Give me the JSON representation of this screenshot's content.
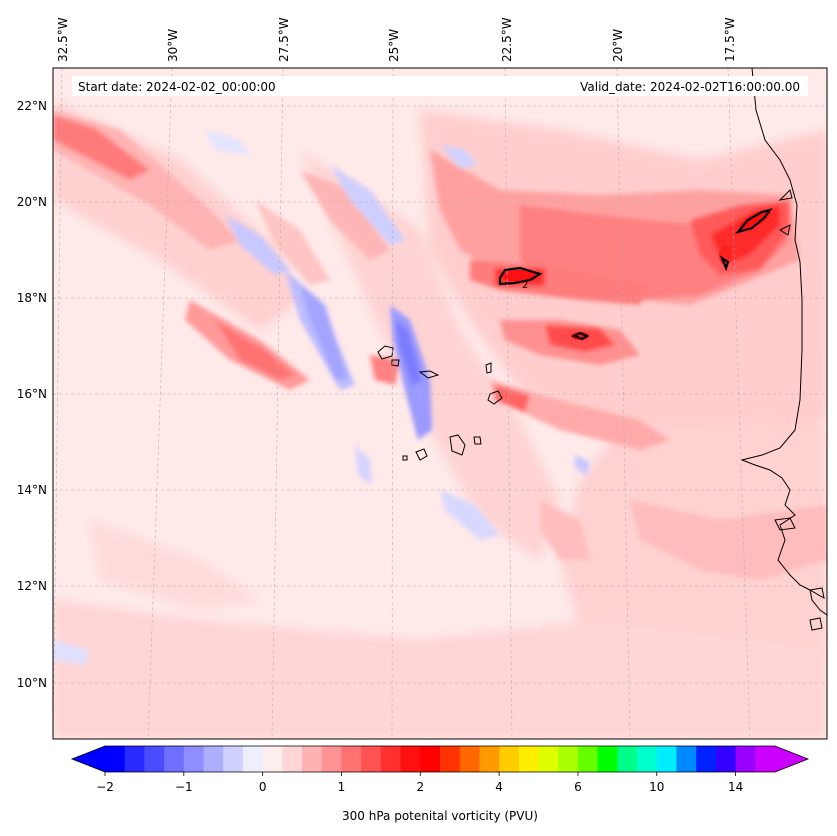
{
  "map": {
    "start_date": "Start date: 2024-02-02_00:00:00",
    "valid_date": "Valid_date: 2024-02-02T16:00:00.00",
    "longitude_labels": [
      "32.5°W",
      "30°W",
      "27.5°W",
      "25°W",
      "22.5°W",
      "20°W",
      "17.5°W"
    ],
    "latitude_labels": [
      "22°N",
      "20°N",
      "18°N",
      "16°N",
      "14°N",
      "12°N",
      "10°N"
    ],
    "contour_label": "2"
  },
  "colorbar": {
    "title": "300 hPa potenital vorticity (PVU)",
    "tick_labels": [
      "−2",
      "−1",
      "0",
      "1",
      "2",
      "4",
      "6",
      "10",
      "14"
    ],
    "colors": [
      "#0000ff",
      "#2a2aff",
      "#4c4cff",
      "#6e6eff",
      "#8e8eff",
      "#aeaeff",
      "#d0d0ff",
      "#eeeeff",
      "#ffeeee",
      "#ffd6d6",
      "#ffb2b2",
      "#ff9292",
      "#ff7272",
      "#ff5252",
      "#ff3030",
      "#ff0f0f",
      "#ff0000",
      "#ff3300",
      "#ff6600",
      "#ff9900",
      "#ffcc00",
      "#ffee00",
      "#ddff00",
      "#aaff00",
      "#66ff00",
      "#00ff00",
      "#00ff88",
      "#00ffcc",
      "#00eeff",
      "#0088ff",
      "#0022ff",
      "#3300ff",
      "#9900ff",
      "#cc00ff"
    ],
    "min_color": "#0000ff",
    "max_color": "#cc00ff"
  },
  "colors": {
    "background": "#ffe8e8",
    "axis": "#000000",
    "coast": "#000000"
  }
}
